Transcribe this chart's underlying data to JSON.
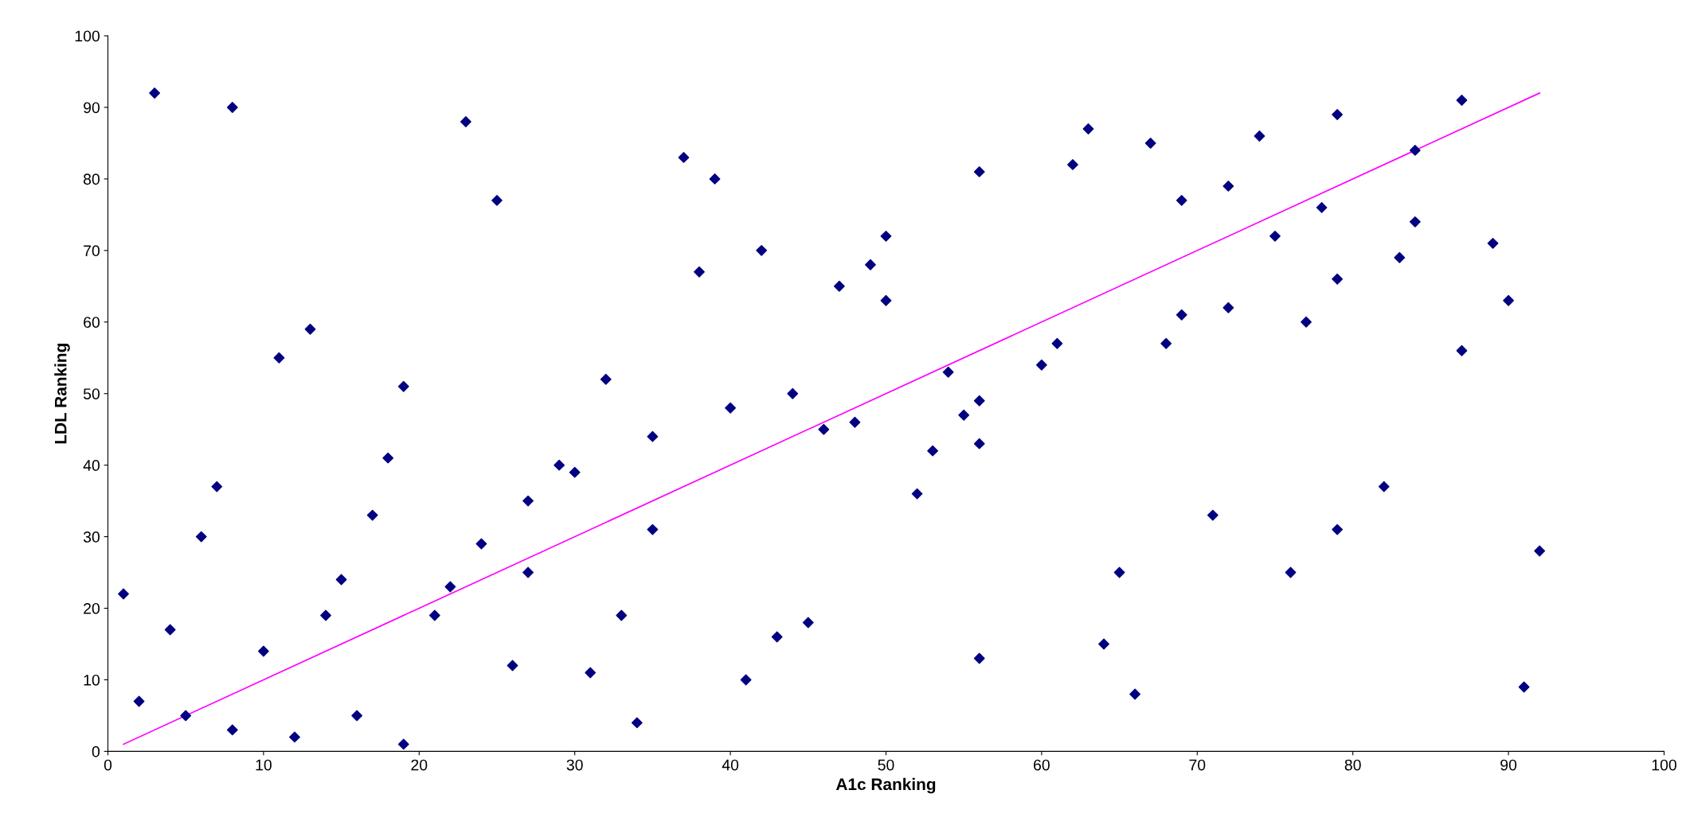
{
  "chart_data": {
    "type": "scatter",
    "xlabel": "A1c Ranking",
    "ylabel": "LDL Ranking",
    "xlim": [
      0,
      100
    ],
    "ylim": [
      0,
      100
    ],
    "xticks": [
      0,
      10,
      20,
      30,
      40,
      50,
      60,
      70,
      80,
      90,
      100
    ],
    "yticks": [
      0,
      10,
      20,
      30,
      40,
      50,
      60,
      70,
      80,
      90,
      100
    ],
    "grid": false,
    "series": [
      {
        "marker": "diamond",
        "color": "#000080",
        "x": [
          1,
          2,
          3,
          4,
          5,
          6,
          7,
          8,
          8,
          10,
          11,
          12,
          13,
          14,
          15,
          16,
          17,
          18,
          19,
          19,
          21,
          22,
          23,
          24,
          25,
          26,
          27,
          27,
          29,
          30,
          31,
          32,
          33,
          34,
          35,
          35,
          37,
          38,
          39,
          40,
          41,
          42,
          43,
          44,
          45,
          46,
          47,
          48,
          49,
          50,
          50,
          52,
          53,
          54,
          55,
          56,
          56,
          56,
          56,
          60,
          61,
          62,
          63,
          64,
          65,
          66,
          67,
          68,
          69,
          69,
          71,
          72,
          72,
          74,
          75,
          76,
          77,
          78,
          79,
          79,
          79,
          82,
          83,
          84,
          84,
          87,
          87,
          89,
          90,
          91,
          92
        ],
        "values": [
          22,
          7,
          92,
          17,
          5,
          30,
          37,
          90,
          3,
          14,
          55,
          2,
          59,
          19,
          24,
          5,
          33,
          41,
          51,
          1,
          19,
          23,
          88,
          29,
          77,
          12,
          35,
          25,
          40,
          39,
          11,
          52,
          19,
          4,
          44,
          31,
          83,
          67,
          80,
          48,
          10,
          70,
          16,
          50,
          18,
          45,
          65,
          46,
          68,
          72,
          63,
          36,
          42,
          53,
          47,
          81,
          49,
          43,
          13,
          54,
          57,
          82,
          87,
          15,
          25,
          8,
          85,
          57,
          77,
          61,
          33,
          79,
          62,
          86,
          72,
          25,
          60,
          76,
          89,
          66,
          31,
          37,
          69,
          84,
          74,
          91,
          56,
          71,
          63,
          9,
          28
        ]
      },
      {
        "type": "line",
        "marker": "none",
        "line_style": "solid",
        "color": "#ff00ff",
        "x": [
          1,
          92
        ],
        "values": [
          1,
          92
        ]
      }
    ]
  }
}
